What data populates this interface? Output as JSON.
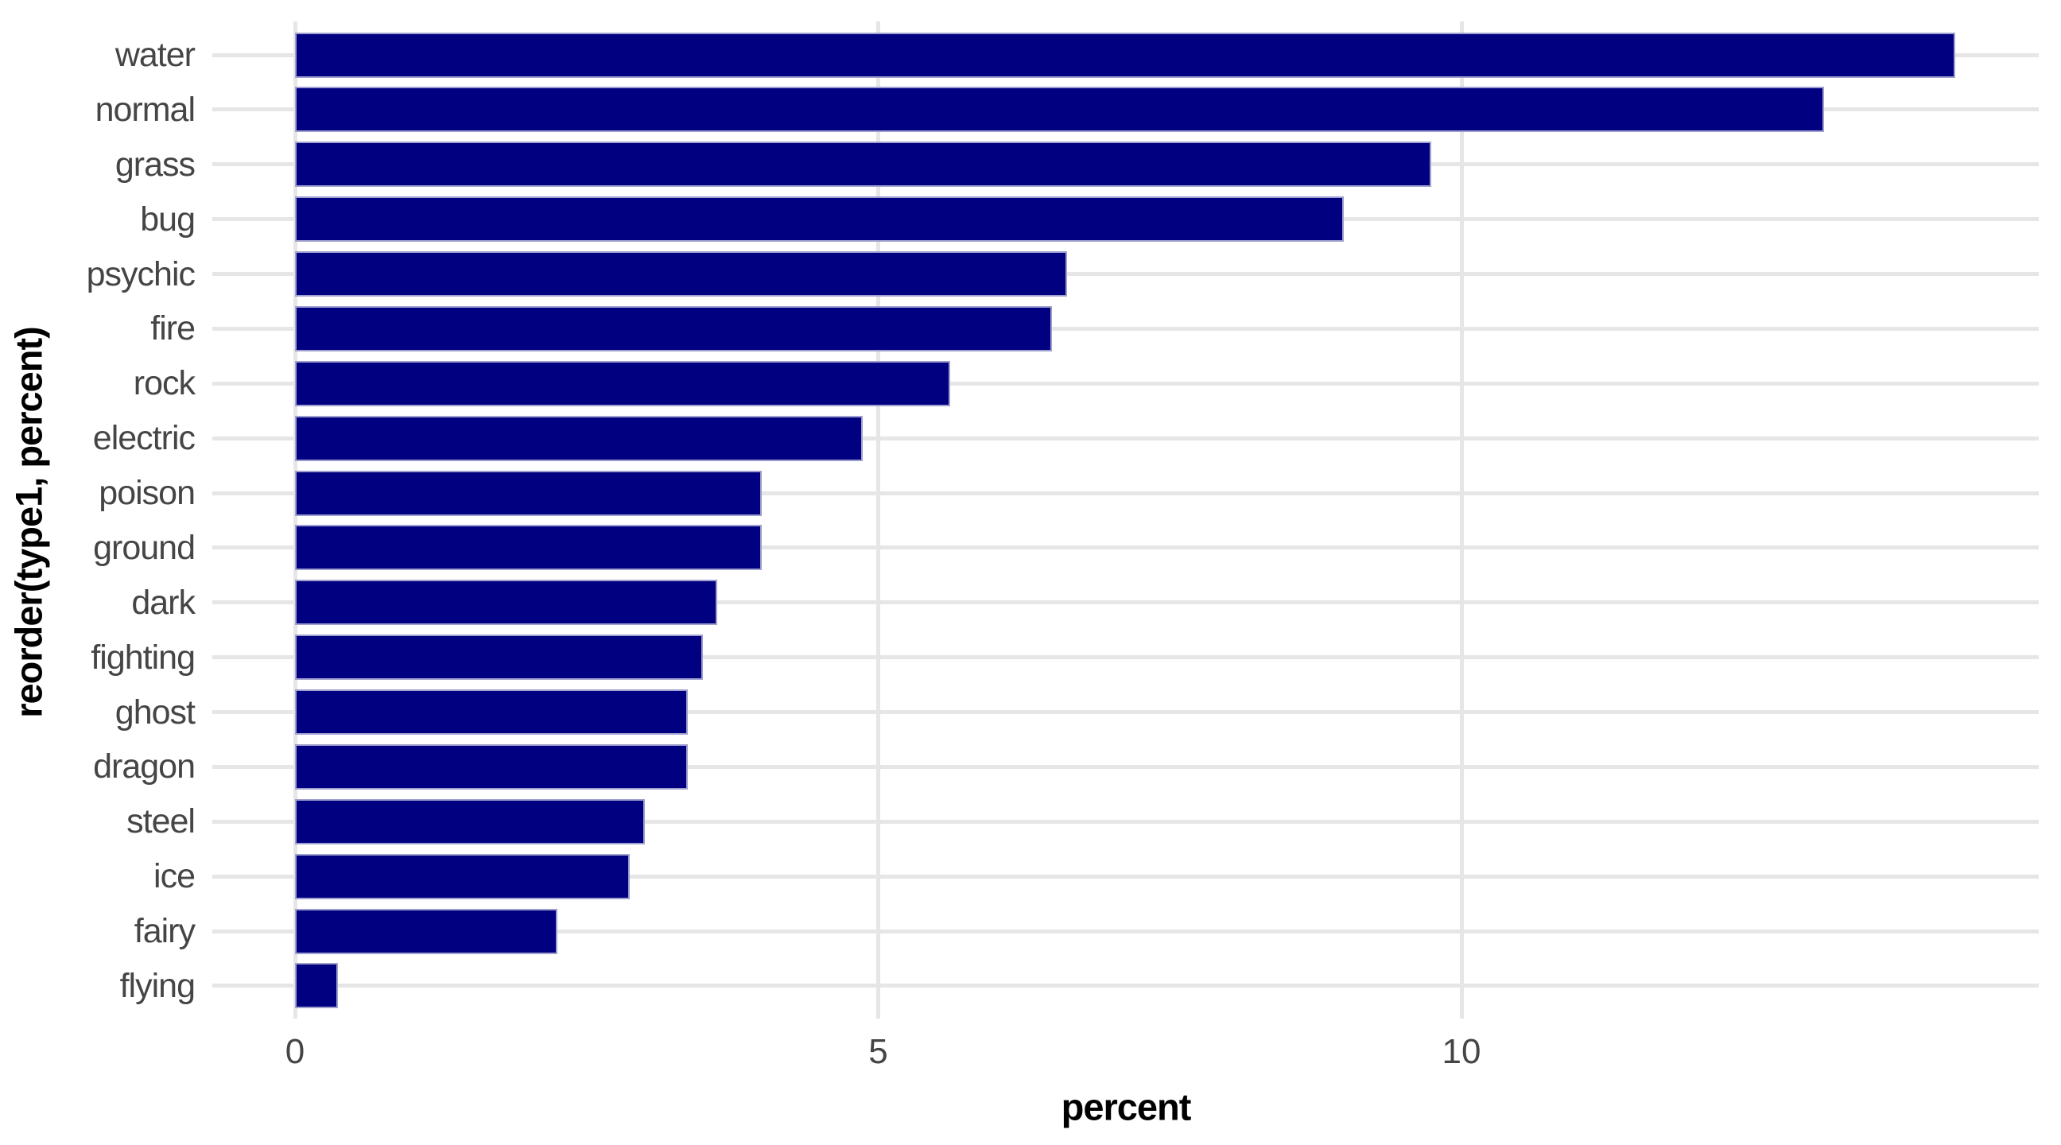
{
  "chart_data": {
    "type": "bar",
    "orientation": "horizontal",
    "title": "",
    "xlabel": "percent",
    "ylabel": "reorder(type1, percent)",
    "categories": [
      "water",
      "normal",
      "grass",
      "bug",
      "psychic",
      "fire",
      "rock",
      "electric",
      "poison",
      "ground",
      "dark",
      "fighting",
      "ghost",
      "dragon",
      "steel",
      "ice",
      "fairy",
      "flying"
    ],
    "values": [
      14.23,
      13.11,
      9.74,
      8.99,
      6.62,
      6.49,
      5.62,
      4.87,
      4.0,
      4.0,
      3.62,
      3.5,
      3.37,
      3.37,
      3.0,
      2.87,
      2.25,
      0.37
    ],
    "x_ticks": [
      "0",
      "5",
      "10"
    ],
    "x_tick_values": [
      0,
      5,
      10
    ],
    "xlim": [
      -0.71,
      14.94
    ],
    "grid": "major-only",
    "legend": "none",
    "colors": {
      "bar_fill": "#000080",
      "bar_border": "#a0a0d0",
      "gridline": "#e6e6e6",
      "tick_label": "#454545",
      "axis_title": "#000000",
      "background": "#ffffff"
    }
  }
}
